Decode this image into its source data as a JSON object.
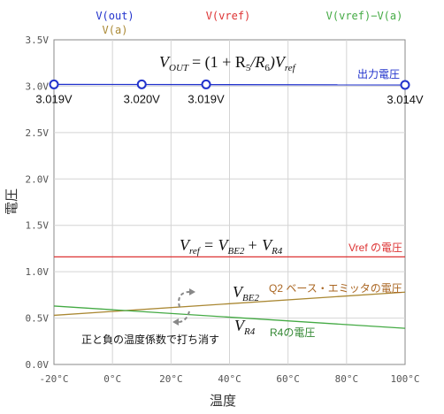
{
  "chart_data": {
    "type": "line",
    "title": "",
    "xlabel": "温度",
    "ylabel": "電圧",
    "xlim": [
      -20,
      100
    ],
    "ylim": [
      0,
      3.5
    ],
    "grid": true,
    "x_ticks": [
      -20,
      0,
      20,
      40,
      60,
      80,
      100
    ],
    "x_tick_labels": [
      "-20°C",
      "0°C",
      "20°C",
      "40°C",
      "60°C",
      "80°C",
      "100°C"
    ],
    "y_ticks": [
      0,
      0.5,
      1.0,
      1.5,
      2.0,
      2.5,
      3.0,
      3.5
    ],
    "y_tick_labels": [
      "0.0V",
      "0.5V",
      "1.0V",
      "1.5V",
      "2.0V",
      "2.5V",
      "3.0V",
      "3.5V"
    ],
    "legend": {
      "placement": "top",
      "entries": [
        {
          "label": "V(out)",
          "color": "#2233cc"
        },
        {
          "label": "V(vref)",
          "color": "#dd3333"
        },
        {
          "label": "V(vref)−V(a)",
          "color": "#44aa44"
        },
        {
          "label": "V(a)",
          "color": "#aa8833"
        }
      ]
    },
    "series": [
      {
        "name": "V(out)",
        "color": "#2233cc",
        "x": [
          -20,
          100
        ],
        "y": [
          3.019,
          3.014
        ]
      },
      {
        "name": "V(vref)",
        "color": "#dd3333",
        "x": [
          -20,
          100
        ],
        "y": [
          1.16,
          1.16
        ]
      },
      {
        "name": "V(a)",
        "color": "#aa8833",
        "x": [
          -20,
          100
        ],
        "y": [
          0.53,
          0.78
        ]
      },
      {
        "name": "V(vref)−V(a)",
        "color": "#44aa44",
        "x": [
          -20,
          100
        ],
        "y": [
          0.63,
          0.39
        ]
      }
    ],
    "markers": [
      {
        "series": "V(out)",
        "x": -20,
        "y": 3.019,
        "label": "3.019V"
      },
      {
        "series": "V(out)",
        "x": 10,
        "y": 3.02,
        "label": "3.020V"
      },
      {
        "series": "V(out)",
        "x": 32,
        "y": 3.019,
        "label": "3.019V"
      },
      {
        "series": "V(out)",
        "x": 100,
        "y": 3.014,
        "label": "3.014V"
      }
    ],
    "annotations": {
      "vout_line_label": "出力電圧",
      "vref_line_label": "Vref の電圧",
      "vbe2_line_label": "Q2 ベース・エミッタの電圧",
      "vr4_line_label": "R4の電圧",
      "cancel_note": "正と負の温度係数で打ち消す",
      "formula_vout": {
        "lhs_main": "V",
        "lhs_sub": "OUT",
        "rhs_a": "= (1 + R",
        "rhs_sub1": "5",
        "rhs_b": "/R",
        "rhs_sub2": "6",
        "rhs_c": ")V",
        "rhs_sub3": "ref"
      },
      "formula_vref": {
        "lhs_main": "V",
        "lhs_sub": "ref",
        "rhs_a": "= V",
        "rhs_sub1": "BE2",
        "rhs_b": "+ V",
        "rhs_sub2": "R4"
      },
      "label_vbe2": {
        "main": "V",
        "sub": "BE2"
      },
      "label_vr4": {
        "main": "V",
        "sub": "R4"
      }
    }
  }
}
